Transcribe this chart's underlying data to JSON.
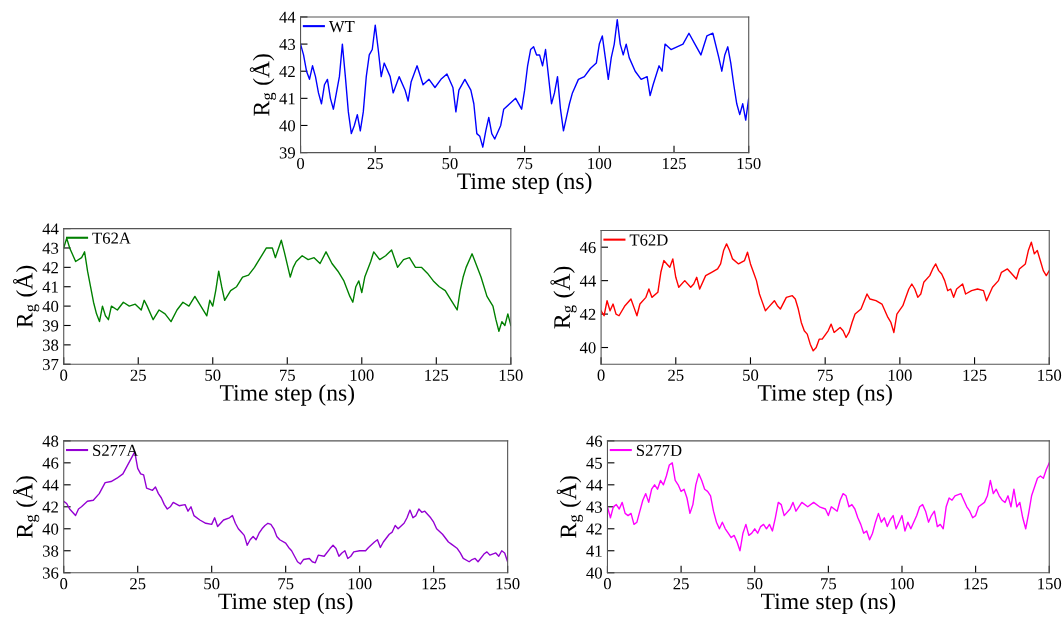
{
  "chart_data": [
    {
      "type": "line",
      "xlabel": "Time step (ns)",
      "ylabel": "R$_{g}$ (Å)",
      "xlim": [
        0,
        150
      ],
      "xticks": [
        0,
        25,
        50,
        75,
        100,
        125,
        150
      ],
      "ylim": [
        39,
        44
      ],
      "yticks": [
        39,
        40,
        41,
        42,
        43,
        44
      ],
      "legend": "top left",
      "grid": false,
      "series": [
        {
          "name": "WT",
          "color": "#0000ff",
          "x": [
            0,
            1,
            2,
            3,
            4,
            5,
            6,
            7,
            8,
            9,
            10,
            11,
            12,
            13,
            14,
            15,
            16,
            17,
            18,
            19,
            20,
            21,
            22,
            23,
            24,
            25,
            26,
            27,
            28,
            30,
            31,
            33,
            35,
            36,
            37,
            39,
            41,
            43,
            45,
            47,
            49,
            51,
            52,
            53,
            55,
            57,
            58,
            59,
            60,
            61,
            62,
            63,
            64,
            65,
            67,
            68,
            70,
            72,
            74,
            75,
            76,
            77,
            78,
            79,
            80,
            81,
            82,
            83,
            84,
            85,
            86,
            87,
            88,
            89,
            90,
            91,
            93,
            95,
            97,
            99,
            100,
            101,
            102,
            103,
            104,
            105,
            106,
            107,
            108,
            109,
            110,
            112,
            114,
            116,
            117,
            118,
            120,
            121,
            122,
            124,
            126,
            128,
            130,
            132,
            134,
            136,
            138,
            140,
            141,
            142,
            143,
            144,
            145,
            146,
            147,
            148,
            149,
            150
          ],
          "values": [
            43.0,
            42.6,
            42.0,
            41.7,
            42.2,
            41.8,
            41.2,
            40.8,
            41.5,
            41.7,
            41.0,
            40.6,
            41.2,
            41.8,
            43.0,
            41.8,
            40.5,
            39.7,
            40.0,
            40.4,
            39.8,
            40.5,
            41.8,
            42.6,
            42.8,
            43.7,
            42.8,
            41.8,
            42.3,
            41.8,
            41.2,
            41.8,
            41.3,
            40.9,
            41.6,
            42.2,
            41.5,
            41.7,
            41.4,
            41.7,
            41.9,
            41.4,
            40.5,
            41.3,
            41.7,
            41.3,
            40.8,
            39.7,
            39.6,
            39.2,
            39.8,
            40.3,
            39.7,
            39.5,
            40.0,
            40.6,
            40.8,
            41.0,
            40.6,
            41.3,
            42.2,
            42.8,
            42.9,
            42.6,
            42.6,
            42.2,
            42.8,
            41.8,
            40.8,
            41.2,
            41.8,
            40.6,
            39.8,
            40.3,
            40.8,
            41.2,
            41.7,
            41.8,
            42.1,
            42.3,
            43.0,
            43.3,
            42.5,
            41.7,
            42.5,
            43.0,
            43.9,
            43.0,
            42.6,
            43.0,
            42.5,
            42.0,
            41.7,
            41.8,
            41.1,
            41.5,
            42.2,
            42.0,
            43.0,
            42.8,
            42.9,
            43.0,
            43.4,
            43.0,
            42.6,
            43.3,
            43.4,
            42.5,
            42.0,
            42.6,
            42.9,
            42.3,
            41.5,
            40.8,
            40.4,
            40.8,
            40.2,
            41.0
          ]
        }
      ]
    },
    {
      "type": "line",
      "xlabel": "Time step (ns)",
      "ylabel": "R$_{g}$ (Å)",
      "xlim": [
        0,
        150
      ],
      "xticks": [
        0,
        25,
        50,
        75,
        100,
        125,
        150
      ],
      "ylim": [
        37,
        44
      ],
      "yticks": [
        37,
        38,
        39,
        40,
        41,
        42,
        43,
        44
      ],
      "legend": "top left",
      "grid": false,
      "series": [
        {
          "name": "T62A",
          "color": "#008000",
          "x": [
            0,
            1,
            2,
            4,
            6,
            7,
            8,
            9,
            10,
            11,
            12,
            13,
            14,
            15,
            16,
            18,
            20,
            22,
            24,
            26,
            27,
            28,
            30,
            32,
            34,
            36,
            38,
            40,
            42,
            44,
            46,
            48,
            49,
            50,
            51,
            52,
            53,
            54,
            56,
            58,
            60,
            62,
            64,
            66,
            68,
            70,
            71,
            73,
            74,
            76,
            77,
            78,
            80,
            82,
            84,
            86,
            88,
            90,
            92,
            94,
            96,
            97,
            98,
            99,
            100,
            101,
            103,
            104,
            106,
            108,
            110,
            112,
            114,
            116,
            118,
            120,
            122,
            124,
            126,
            128,
            130,
            132,
            133,
            134,
            135,
            137,
            138,
            140,
            142,
            144,
            145,
            146,
            147,
            148,
            149,
            150
          ],
          "values": [
            43.0,
            43.5,
            43.0,
            42.3,
            42.5,
            42.8,
            41.8,
            41.0,
            40.2,
            39.6,
            39.2,
            40.0,
            39.5,
            39.3,
            40.0,
            39.8,
            40.2,
            40.0,
            40.1,
            39.8,
            40.3,
            40.0,
            39.3,
            39.8,
            39.6,
            39.2,
            39.8,
            40.2,
            40.0,
            40.5,
            40.0,
            39.5,
            40.3,
            40.0,
            40.8,
            41.8,
            41.0,
            40.3,
            40.8,
            41.0,
            41.5,
            41.6,
            42.0,
            42.5,
            43.0,
            43.0,
            42.5,
            43.4,
            42.8,
            41.5,
            42.0,
            42.3,
            42.6,
            42.4,
            42.5,
            42.2,
            42.8,
            42.2,
            41.8,
            41.3,
            40.5,
            40.2,
            41.0,
            41.3,
            40.7,
            41.5,
            42.3,
            42.8,
            42.4,
            42.6,
            42.9,
            42.0,
            42.4,
            42.5,
            42.0,
            42.0,
            41.7,
            41.3,
            41.0,
            40.8,
            40.3,
            39.8,
            40.8,
            41.5,
            42.0,
            42.7,
            42.3,
            41.5,
            40.5,
            40.0,
            39.3,
            38.7,
            39.2,
            39.0,
            39.6,
            39.0
          ]
        }
      ]
    },
    {
      "type": "line",
      "xlabel": "Time step (ns)",
      "ylabel": "R$_{g}$ (Å)",
      "xlim": [
        0,
        150
      ],
      "xticks": [
        0,
        25,
        50,
        75,
        100,
        125,
        150
      ],
      "ylim": [
        39,
        47
      ],
      "yticks": [
        40,
        42,
        44,
        46
      ],
      "legend": "top left",
      "grid": false,
      "series": [
        {
          "name": "T62D",
          "color": "#ff0000",
          "x": [
            0,
            1,
            2,
            3,
            4,
            5,
            6,
            8,
            10,
            11,
            12,
            13,
            15,
            16,
            17,
            19,
            20,
            21,
            22,
            23,
            24,
            25,
            26,
            28,
            30,
            31,
            32,
            33,
            35,
            37,
            39,
            40,
            41,
            42,
            43,
            44,
            46,
            48,
            49,
            50,
            51,
            52,
            53,
            54,
            55,
            56,
            58,
            59,
            60,
            62,
            64,
            65,
            66,
            67,
            68,
            69,
            70,
            71,
            72,
            73,
            74,
            76,
            77,
            78,
            80,
            81,
            82,
            83,
            84,
            85,
            87,
            89,
            90,
            92,
            94,
            96,
            97,
            98,
            99,
            101,
            102,
            103,
            104,
            105,
            106,
            107,
            108,
            110,
            111,
            112,
            113,
            114,
            115,
            116,
            117,
            118,
            119,
            121,
            122,
            124,
            126,
            128,
            129,
            130,
            131,
            133,
            134,
            136,
            137,
            139,
            140,
            142,
            143,
            144,
            145,
            146,
            147,
            148,
            149,
            150
          ],
          "values": [
            42.2,
            41.9,
            42.8,
            42.2,
            42.6,
            42.0,
            41.9,
            42.5,
            42.9,
            42.4,
            41.9,
            42.6,
            43.0,
            43.5,
            43.0,
            43.3,
            44.5,
            45.2,
            45.0,
            44.8,
            45.3,
            44.2,
            43.6,
            44.0,
            43.6,
            43.8,
            44.2,
            43.5,
            44.3,
            44.5,
            44.7,
            45.0,
            45.8,
            46.2,
            45.8,
            45.3,
            45.0,
            45.2,
            45.7,
            45.0,
            44.5,
            44.0,
            43.2,
            42.7,
            42.2,
            42.4,
            42.8,
            42.5,
            42.3,
            43.0,
            43.1,
            42.9,
            42.3,
            41.5,
            41.0,
            40.8,
            40.2,
            39.8,
            40.0,
            40.5,
            40.5,
            41.0,
            41.4,
            40.9,
            41.2,
            41.0,
            40.6,
            40.9,
            41.5,
            42.0,
            42.3,
            43.2,
            42.9,
            42.8,
            42.6,
            41.8,
            41.5,
            40.9,
            42.0,
            42.5,
            43.0,
            43.5,
            43.8,
            43.5,
            43.0,
            43.2,
            43.9,
            44.3,
            44.7,
            45.0,
            44.6,
            44.4,
            44.0,
            43.4,
            43.5,
            43.0,
            43.5,
            43.8,
            43.2,
            43.4,
            43.5,
            43.4,
            42.8,
            43.2,
            43.6,
            44.0,
            44.5,
            44.7,
            44.5,
            44.1,
            44.7,
            45.0,
            45.8,
            46.3,
            45.6,
            45.8,
            45.2,
            44.6,
            44.3,
            44.6
          ]
        }
      ]
    },
    {
      "type": "line",
      "xlabel": "Time step (ns)",
      "ylabel": "R$_{g}$ (Å)",
      "xlim": [
        0,
        150
      ],
      "xticks": [
        0,
        25,
        50,
        75,
        100,
        125,
        150
      ],
      "ylim": [
        36,
        48
      ],
      "yticks": [
        36,
        38,
        40,
        42,
        44,
        46,
        48
      ],
      "legend": "top left",
      "grid": false,
      "series": [
        {
          "name": "S277A",
          "color": "#9400d3",
          "x": [
            0,
            1,
            2,
            3,
            4,
            5,
            6,
            8,
            10,
            12,
            13,
            14,
            16,
            18,
            20,
            21,
            22,
            23,
            24,
            25,
            26,
            27,
            28,
            30,
            31,
            32,
            33,
            34,
            35,
            36,
            37,
            39,
            41,
            42,
            43,
            44,
            46,
            48,
            50,
            51,
            52,
            54,
            56,
            57,
            58,
            59,
            60,
            61,
            62,
            63,
            64,
            65,
            66,
            67,
            68,
            69,
            70,
            71,
            72,
            73,
            75,
            76,
            77,
            78,
            79,
            80,
            81,
            83,
            84,
            85,
            86,
            88,
            90,
            91,
            92,
            93,
            94,
            95,
            96,
            97,
            98,
            100,
            102,
            103,
            105,
            106,
            107,
            108,
            110,
            111,
            112,
            113,
            115,
            116,
            117,
            118,
            119,
            120,
            121,
            122,
            124,
            125,
            126,
            128,
            130,
            131,
            133,
            134,
            135,
            137,
            138,
            139,
            140,
            142,
            143,
            144,
            146,
            147,
            148,
            149,
            150
          ],
          "values": [
            42.5,
            42.3,
            41.8,
            41.5,
            41.2,
            41.8,
            42.0,
            42.5,
            42.6,
            43.2,
            43.7,
            44.2,
            44.3,
            44.6,
            45.0,
            45.5,
            46.0,
            46.5,
            47.0,
            45.5,
            45.0,
            44.9,
            43.7,
            43.5,
            43.8,
            43.2,
            42.8,
            42.2,
            41.8,
            42.0,
            42.4,
            42.1,
            42.2,
            41.6,
            42.0,
            41.2,
            40.8,
            40.5,
            40.4,
            41.0,
            40.2,
            40.8,
            41.0,
            41.2,
            40.5,
            40.0,
            39.7,
            39.4,
            38.5,
            39.0,
            39.3,
            39.0,
            39.6,
            40.0,
            40.3,
            40.5,
            40.4,
            40.0,
            39.3,
            39.0,
            38.7,
            38.3,
            38.0,
            37.5,
            37.0,
            36.8,
            37.2,
            37.3,
            37.0,
            36.9,
            37.6,
            37.5,
            38.2,
            38.5,
            38.2,
            37.5,
            37.8,
            38.0,
            37.3,
            37.5,
            37.9,
            38.0,
            38.0,
            38.3,
            38.8,
            39.0,
            38.3,
            38.8,
            39.5,
            39.7,
            40.3,
            40.0,
            40.5,
            41.0,
            41.7,
            41.0,
            41.2,
            41.8,
            41.5,
            41.6,
            41.0,
            40.6,
            40.0,
            39.5,
            38.8,
            38.6,
            38.2,
            37.8,
            37.3,
            37.0,
            37.2,
            37.3,
            37.0,
            37.7,
            37.9,
            37.6,
            37.8,
            37.5,
            38.0,
            37.8,
            37.0
          ]
        }
      ]
    },
    {
      "type": "line",
      "xlabel": "Time step (ns)",
      "ylabel": "R$_{g}$ (Å)",
      "xlim": [
        0,
        150
      ],
      "xticks": [
        0,
        25,
        50,
        75,
        100,
        125,
        150
      ],
      "ylim": [
        40,
        46
      ],
      "yticks": [
        40,
        41,
        42,
        43,
        44,
        45,
        46
      ],
      "legend": "top left",
      "grid": false,
      "series": [
        {
          "name": "S277D",
          "color": "#ff00ff",
          "x": [
            0,
            1,
            2,
            3,
            4,
            5,
            6,
            7,
            8,
            9,
            10,
            11,
            12,
            13,
            14,
            15,
            16,
            17,
            18,
            19,
            20,
            21,
            22,
            23,
            24,
            25,
            26,
            27,
            28,
            29,
            30,
            31,
            32,
            33,
            34,
            35,
            36,
            37,
            38,
            39,
            40,
            41,
            42,
            43,
            44,
            45,
            46,
            47,
            48,
            49,
            50,
            51,
            52,
            53,
            54,
            55,
            56,
            57,
            58,
            59,
            60,
            62,
            63,
            64,
            66,
            68,
            70,
            72,
            74,
            75,
            76,
            78,
            79,
            80,
            81,
            82,
            83,
            84,
            85,
            86,
            87,
            88,
            89,
            90,
            91,
            92,
            93,
            94,
            95,
            96,
            97,
            98,
            99,
            100,
            101,
            102,
            103,
            105,
            106,
            107,
            108,
            109,
            110,
            111,
            112,
            113,
            114,
            115,
            116,
            117,
            118,
            120,
            121,
            122,
            123,
            124,
            125,
            126,
            128,
            129,
            130,
            131,
            132,
            133,
            134,
            135,
            136,
            137,
            138,
            139,
            140,
            141,
            142,
            143,
            144,
            145,
            146,
            147,
            148,
            149,
            150
          ],
          "values": [
            43.0,
            42.5,
            43.0,
            43.1,
            42.9,
            43.2,
            42.7,
            42.6,
            42.7,
            42.2,
            42.3,
            42.8,
            43.3,
            43.6,
            43.2,
            43.8,
            44.0,
            43.8,
            44.2,
            44.0,
            44.4,
            44.9,
            45.0,
            44.2,
            44.0,
            43.7,
            43.8,
            43.4,
            42.7,
            43.1,
            44.0,
            44.5,
            44.2,
            43.8,
            43.7,
            43.5,
            42.8,
            42.3,
            42.0,
            42.3,
            42.0,
            41.8,
            41.6,
            41.7,
            41.4,
            41.0,
            41.8,
            42.2,
            41.7,
            41.8,
            42.0,
            41.8,
            42.1,
            42.2,
            42.0,
            42.2,
            41.9,
            42.5,
            43.2,
            43.1,
            42.6,
            42.9,
            43.2,
            42.8,
            43.2,
            43.0,
            43.2,
            43.0,
            42.9,
            42.6,
            43.0,
            42.8,
            43.3,
            43.6,
            43.5,
            43.0,
            43.1,
            42.9,
            42.5,
            42.2,
            41.8,
            41.9,
            41.5,
            41.8,
            42.3,
            42.7,
            42.3,
            42.5,
            42.1,
            42.4,
            42.6,
            42.0,
            42.3,
            42.6,
            41.9,
            42.3,
            42.0,
            42.6,
            43.0,
            43.1,
            42.8,
            42.3,
            42.6,
            42.8,
            42.1,
            42.2,
            42.0,
            43.0,
            43.4,
            43.3,
            43.5,
            43.6,
            43.3,
            43.0,
            42.8,
            42.5,
            42.6,
            43.0,
            43.2,
            43.5,
            44.2,
            43.6,
            43.8,
            43.5,
            43.3,
            43.2,
            43.5,
            43.0,
            43.8,
            43.0,
            43.2,
            42.5,
            42.0,
            42.7,
            43.5,
            43.9,
            44.3,
            44.4,
            44.3,
            44.7,
            45.0
          ]
        }
      ]
    }
  ]
}
